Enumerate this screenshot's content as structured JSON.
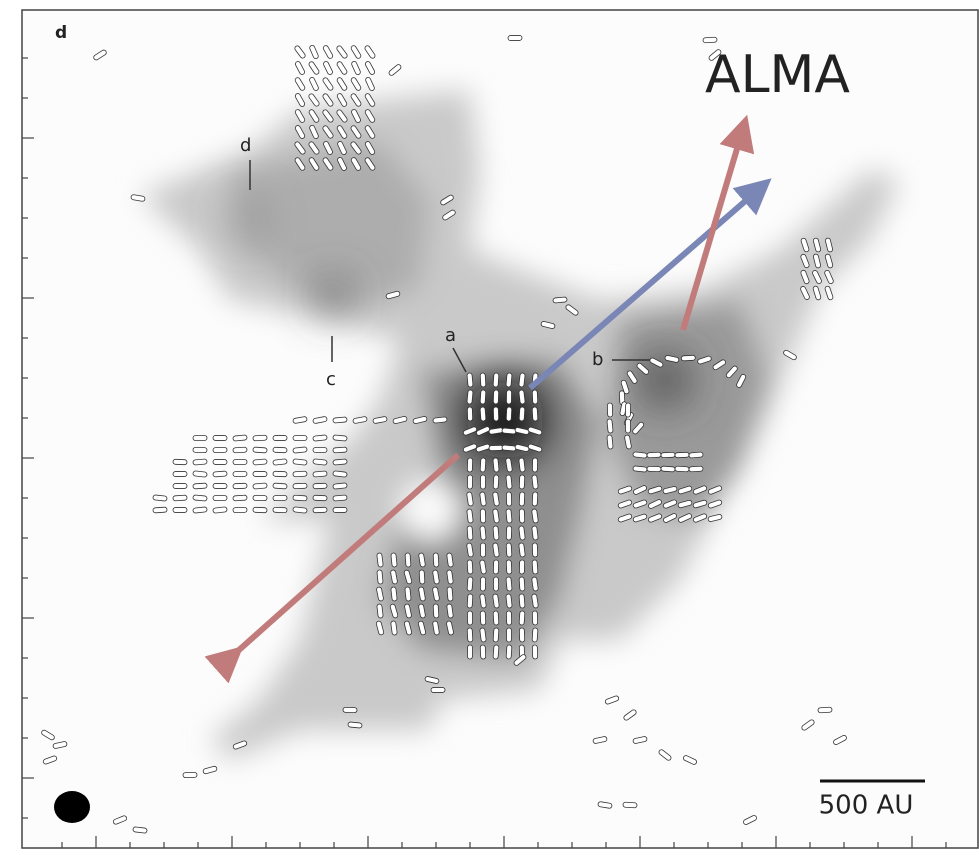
{
  "panel_label": "d",
  "title": "ALMA",
  "labels": {
    "a": "a",
    "b": "b",
    "c": "c",
    "d": "d"
  },
  "scale_bar": "500 AU"
}
